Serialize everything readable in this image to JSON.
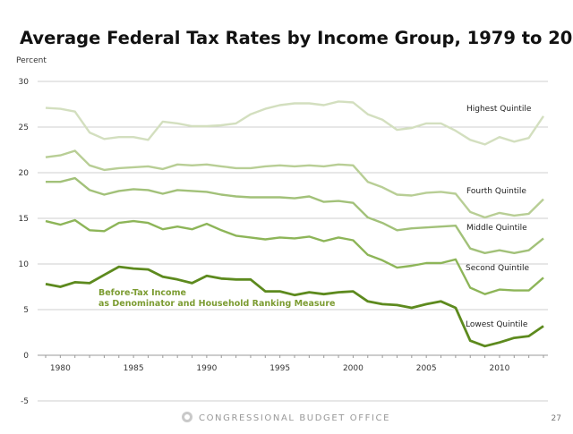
{
  "chart_data": {
    "type": "line",
    "title": "Average Federal Tax Rates by Income Group, 1979 to 2013",
    "ylabel": "Percent",
    "xlabel": "",
    "ylim": [
      -5,
      30
    ],
    "yticks": [
      "-5",
      "0",
      "5",
      "10",
      "15",
      "20",
      "25",
      "30"
    ],
    "xlim": [
      1979,
      2013
    ],
    "xtick_labels": [
      "1980",
      "1985",
      "1990",
      "1995",
      "2000",
      "2005",
      "2010"
    ],
    "grid": "horizontal",
    "annotation": [
      "Before-Tax Income",
      "as Denominator and Household Ranking Measure"
    ],
    "x": [
      1979,
      1980,
      1981,
      1982,
      1983,
      1984,
      1985,
      1986,
      1987,
      1988,
      1989,
      1990,
      1991,
      1992,
      1993,
      1994,
      1995,
      1996,
      1997,
      1998,
      1999,
      2000,
      2001,
      2002,
      2003,
      2004,
      2005,
      2006,
      2007,
      2008,
      2009,
      2010,
      2011,
      2012,
      2013
    ],
    "series": [
      {
        "name": "Highest Quintile",
        "color": "#d3dfbf",
        "values": [
          27.1,
          27.0,
          26.7,
          24.4,
          23.7,
          23.9,
          23.9,
          23.6,
          25.6,
          25.4,
          25.1,
          25.1,
          25.2,
          25.4,
          26.4,
          27.0,
          27.4,
          27.6,
          27.6,
          27.4,
          27.8,
          27.7,
          26.4,
          25.8,
          24.7,
          24.9,
          25.4,
          25.4,
          24.6,
          23.6,
          23.1,
          23.9,
          23.4,
          23.8,
          26.2
        ]
      },
      {
        "name": "Fourth Quintile",
        "color": "#b8ce95",
        "values": [
          21.7,
          21.9,
          22.4,
          20.8,
          20.3,
          20.5,
          20.6,
          20.7,
          20.4,
          20.9,
          20.8,
          20.9,
          20.7,
          20.5,
          20.5,
          20.7,
          20.8,
          20.7,
          20.8,
          20.7,
          20.9,
          20.8,
          19.0,
          18.4,
          17.6,
          17.5,
          17.8,
          17.9,
          17.7,
          15.7,
          15.1,
          15.6,
          15.3,
          15.5,
          17.1
        ]
      },
      {
        "name": "Middle Quintile",
        "color": "#a2c179",
        "values": [
          19.0,
          19.0,
          19.4,
          18.1,
          17.6,
          18.0,
          18.2,
          18.1,
          17.7,
          18.1,
          18.0,
          17.9,
          17.6,
          17.4,
          17.3,
          17.3,
          17.3,
          17.2,
          17.4,
          16.8,
          16.9,
          16.7,
          15.1,
          14.5,
          13.7,
          13.9,
          14.0,
          14.1,
          14.2,
          11.7,
          11.2,
          11.5,
          11.2,
          11.5,
          12.8
        ]
      },
      {
        "name": "Second Quintile",
        "color": "#8db558",
        "values": [
          14.7,
          14.3,
          14.8,
          13.7,
          13.6,
          14.5,
          14.7,
          14.5,
          13.8,
          14.1,
          13.8,
          14.4,
          13.7,
          13.1,
          12.9,
          12.7,
          12.9,
          12.8,
          13.0,
          12.5,
          12.9,
          12.6,
          11.0,
          10.4,
          9.6,
          9.8,
          10.1,
          10.1,
          10.5,
          7.4,
          6.7,
          7.2,
          7.1,
          7.1,
          8.5
        ]
      },
      {
        "name": "Lowest Quintile",
        "color": "#5d8a1e",
        "values": [
          7.8,
          7.5,
          8.0,
          7.9,
          8.8,
          9.7,
          9.5,
          9.4,
          8.6,
          8.3,
          7.9,
          8.7,
          8.4,
          8.3,
          8.3,
          7.0,
          7.0,
          6.6,
          6.9,
          6.7,
          6.9,
          7.0,
          5.9,
          5.6,
          5.5,
          5.2,
          5.6,
          5.9,
          5.2,
          1.6,
          1.0,
          1.4,
          1.9,
          2.1,
          3.2
        ]
      }
    ]
  },
  "footer": {
    "organization": "CONGRESSIONAL BUDGET OFFICE",
    "page_number": "27"
  },
  "colors": {
    "annotation": "#7c9c32",
    "grid": "#c8c8c8",
    "text": "#222222"
  }
}
